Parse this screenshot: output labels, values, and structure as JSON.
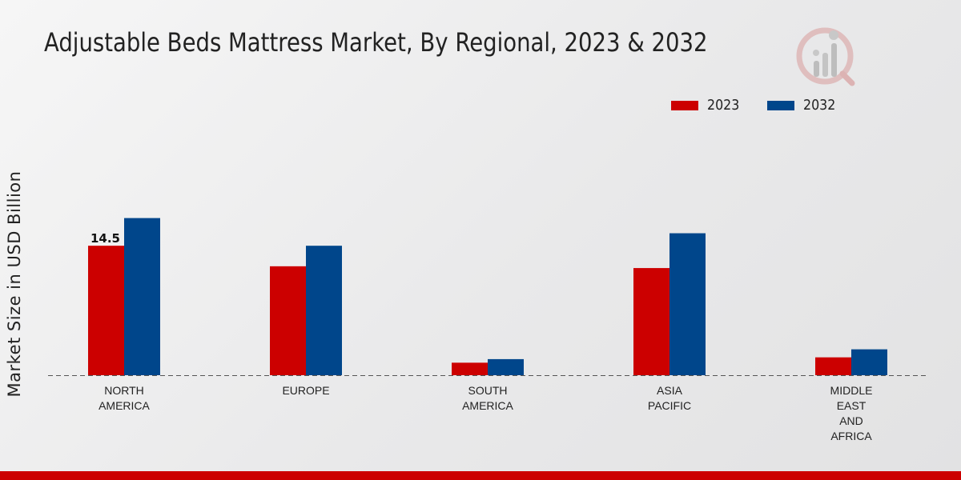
{
  "chart_data": {
    "type": "bar",
    "title": "Adjustable Beds Mattress Market, By Regional, 2023 & 2032",
    "xlabel": "",
    "ylabel": "Market Size in USD Billion",
    "categories": [
      "NORTH\nAMERICA",
      "EUROPE",
      "SOUTH\nAMERICA",
      "ASIA\nPACIFIC",
      "MIDDLE\nEAST\nAND\nAFRICA"
    ],
    "series": [
      {
        "name": "2023",
        "color": "#cc0000",
        "values": [
          14.5,
          12.2,
          1.4,
          12.0,
          2.0
        ]
      },
      {
        "name": "2032",
        "color": "#00468b",
        "values": [
          17.6,
          14.5,
          1.8,
          15.9,
          2.9
        ]
      }
    ],
    "data_labels": [
      {
        "series": 0,
        "index": 0,
        "text": "14.5"
      }
    ],
    "ylim": [
      0,
      25
    ],
    "grid": false,
    "legend_position": "top-right"
  },
  "logo": {
    "name": "brand-logo",
    "colors": [
      "#d9a6a6",
      "#b8b8b8"
    ]
  },
  "footer_bar_color": "#cc0000"
}
